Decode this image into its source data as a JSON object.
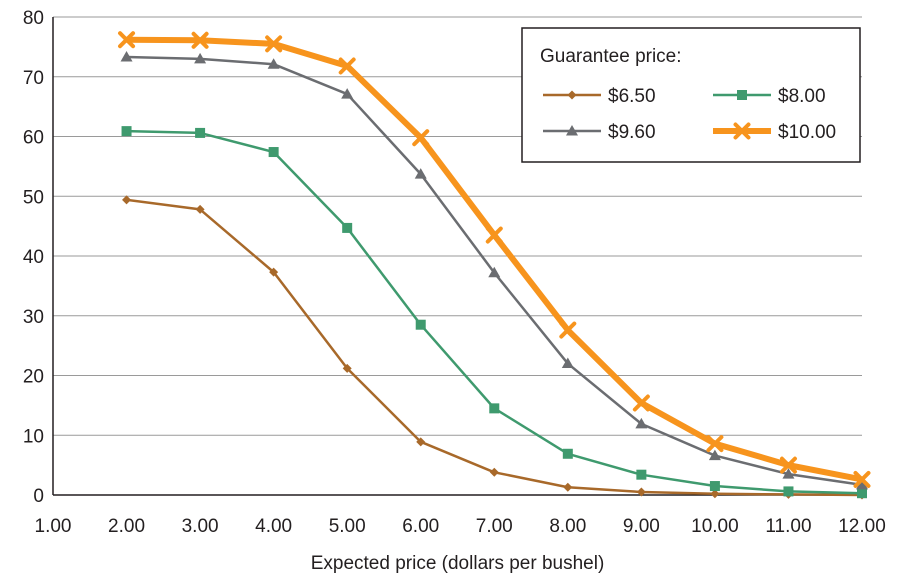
{
  "chart_data": {
    "type": "line",
    "title": "",
    "xlabel": "Expected price (dollars per bushel)",
    "ylabel": "",
    "xlim": [
      1.0,
      12.0
    ],
    "ylim": [
      0,
      80
    ],
    "x_ticks": [
      "1.00",
      "2.00",
      "3.00",
      "4.00",
      "5.00",
      "6.00",
      "7.00",
      "8.00",
      "9.00",
      "10.00",
      "11.00",
      "12.00"
    ],
    "y_ticks": [
      "0",
      "10",
      "20",
      "30",
      "40",
      "50",
      "60",
      "70",
      "80"
    ],
    "grid": "horizontal",
    "legend": {
      "title": "Guarantee price:",
      "position": "top-right"
    },
    "x": [
      2,
      3,
      4,
      5,
      6,
      7,
      8,
      9,
      10,
      11,
      12
    ],
    "series": [
      {
        "name": "$6.50",
        "color": "#a8692a",
        "marker": "diamond",
        "values": [
          49.4,
          47.8,
          37.3,
          21.2,
          8.9,
          3.8,
          1.3,
          0.5,
          0.2,
          0.1,
          0.0
        ]
      },
      {
        "name": "$8.00",
        "color": "#3f9a6e",
        "marker": "square",
        "values": [
          60.9,
          60.6,
          57.4,
          44.7,
          28.5,
          14.5,
          6.9,
          3.4,
          1.5,
          0.6,
          0.3
        ]
      },
      {
        "name": "$9.60",
        "color": "#6b6d71",
        "marker": "triangle",
        "values": [
          73.3,
          73.0,
          72.1,
          67.1,
          53.7,
          37.2,
          22.0,
          11.9,
          6.6,
          3.5,
          1.7
        ]
      },
      {
        "name": "$10.00",
        "color": "#f7941d",
        "marker": "x",
        "values": [
          76.2,
          76.1,
          75.5,
          71.8,
          59.8,
          43.5,
          27.6,
          15.4,
          8.6,
          5.0,
          2.6
        ]
      }
    ]
  }
}
